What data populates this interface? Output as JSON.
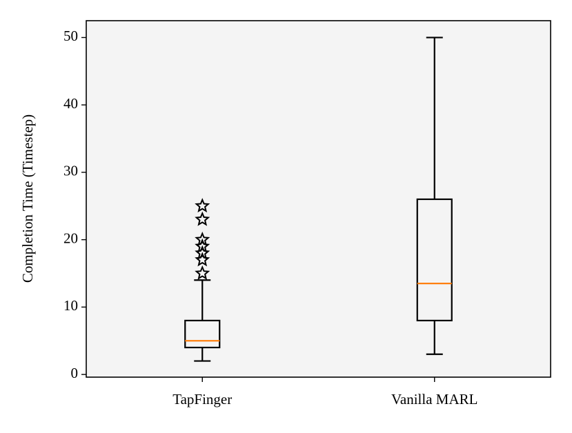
{
  "chart_data": {
    "type": "box",
    "y_label": "Completion Time (Timestep)",
    "categories": [
      "TapFinger",
      "Vanilla MARL"
    ],
    "boxes": [
      {
        "whislo": 2,
        "q1": 4,
        "median": 5,
        "q3": 8,
        "whishi": 14,
        "fliers": [
          15,
          17,
          18,
          19,
          20,
          23,
          25
        ]
      },
      {
        "whislo": 3,
        "q1": 8,
        "median": 13.5,
        "q3": 26,
        "whishi": 50,
        "fliers": []
      }
    ],
    "color": "#000000",
    "median_color": "#ff7f0e",
    "background": "#f4f4f4",
    "ylim": [
      -0.4,
      52.5
    ],
    "yticks": [
      0,
      10,
      20,
      30,
      40,
      50
    ]
  }
}
